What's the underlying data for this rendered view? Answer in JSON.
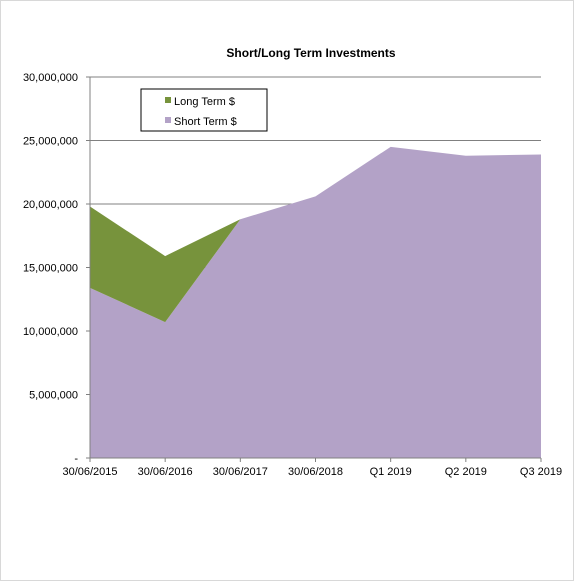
{
  "chart_data": {
    "type": "area",
    "stacked": true,
    "title": "Short/Long Term Investments",
    "categories": [
      "30/06/2015",
      "30/06/2016",
      "30/06/2017",
      "30/06/2018",
      "Q1 2019",
      "Q2 2019",
      "Q3 2019"
    ],
    "series": [
      {
        "name": "Short Term $",
        "color": "#b3a2c7",
        "values": [
          13400000,
          10700000,
          18800000,
          20600000,
          24500000,
          23800000,
          23900000
        ]
      },
      {
        "name": "Long Term $",
        "color": "#77933c",
        "values": [
          6400000,
          5200000,
          0,
          0,
          0,
          0,
          0
        ]
      }
    ],
    "legend_order": [
      "Long Term $",
      "Short Term $"
    ],
    "legend_position": "top-left",
    "ylim": [
      0,
      30000000
    ],
    "yticks": [
      0,
      5000000,
      10000000,
      15000000,
      20000000,
      25000000,
      30000000
    ],
    "ytick_labels": [
      "-",
      "5,000,000",
      "10,000,000",
      "15,000,000",
      "20,000,000",
      "25,000,000",
      "30,000,000"
    ],
    "grid": "horizontal",
    "xlabel": "",
    "ylabel": ""
  }
}
